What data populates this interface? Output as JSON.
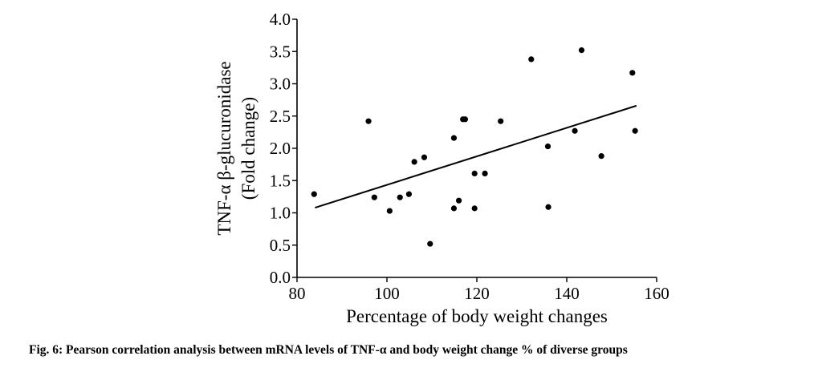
{
  "caption": "Fig. 6: Pearson correlation analysis between mRNA levels of TNF-α and body weight change % of diverse groups",
  "chart_data": {
    "type": "scatter",
    "title": "",
    "xlabel": "Percentage of body weight changes",
    "ylabel_lines": [
      "TNF-α β-glucuronidase",
      "(Fold change)"
    ],
    "xlim": [
      80,
      160
    ],
    "ylim": [
      0.0,
      4.0
    ],
    "x_ticks": [
      80,
      100,
      120,
      140,
      160
    ],
    "x_tick_labels": [
      "80",
      "100",
      "120",
      "140",
      "160"
    ],
    "y_ticks": [
      0.0,
      0.5,
      1.0,
      1.5,
      2.0,
      2.5,
      3.0,
      3.5,
      4.0
    ],
    "y_tick_labels": [
      "0.0",
      "0.5",
      "1.0",
      "1.5",
      "2.0",
      "2.5",
      "3.0",
      "3.5",
      "4.0"
    ],
    "grid": false,
    "points": [
      {
        "x": 83.8,
        "y": 1.29
      },
      {
        "x": 95.9,
        "y": 2.42
      },
      {
        "x": 97.2,
        "y": 1.24
      },
      {
        "x": 100.6,
        "y": 1.03
      },
      {
        "x": 102.9,
        "y": 1.24
      },
      {
        "x": 104.9,
        "y": 1.29
      },
      {
        "x": 106.1,
        "y": 1.79
      },
      {
        "x": 108.3,
        "y": 1.86
      },
      {
        "x": 109.6,
        "y": 0.52
      },
      {
        "x": 114.9,
        "y": 2.16
      },
      {
        "x": 114.9,
        "y": 1.07
      },
      {
        "x": 116.0,
        "y": 1.19
      },
      {
        "x": 116.9,
        "y": 2.45
      },
      {
        "x": 117.4,
        "y": 2.45
      },
      {
        "x": 119.5,
        "y": 1.61
      },
      {
        "x": 119.5,
        "y": 1.07
      },
      {
        "x": 121.8,
        "y": 1.61
      },
      {
        "x": 125.3,
        "y": 2.42
      },
      {
        "x": 132.1,
        "y": 3.38
      },
      {
        "x": 135.8,
        "y": 2.03
      },
      {
        "x": 135.9,
        "y": 1.09
      },
      {
        "x": 141.8,
        "y": 2.27
      },
      {
        "x": 143.3,
        "y": 3.52
      },
      {
        "x": 147.7,
        "y": 1.88
      },
      {
        "x": 154.6,
        "y": 3.17
      },
      {
        "x": 155.2,
        "y": 2.27
      }
    ],
    "trend_line": {
      "x": [
        84,
        155.5
      ],
      "y": [
        1.08,
        2.66
      ]
    }
  }
}
